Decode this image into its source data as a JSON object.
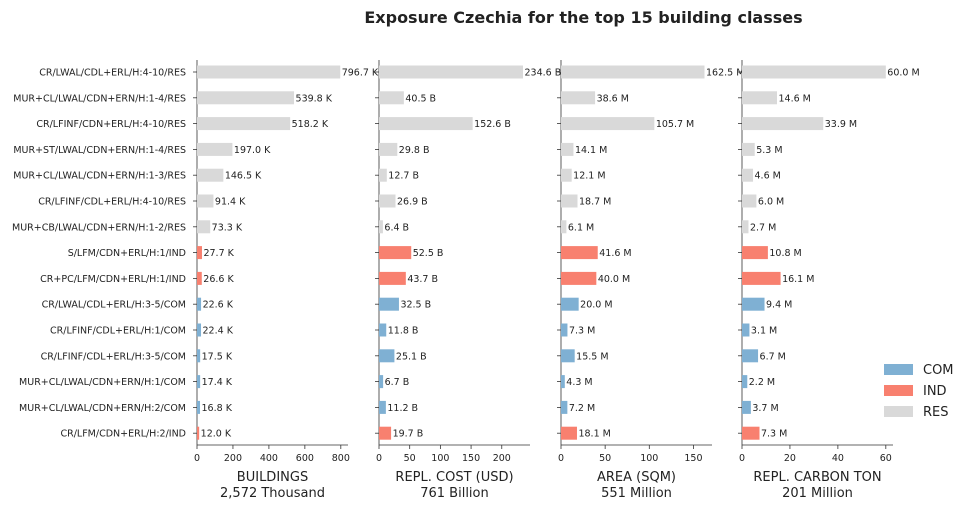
{
  "chart_data": {
    "type": "bar",
    "orientation": "horizontal",
    "title": "Exposure Czechia for the top 15 building classes",
    "categories": [
      "CR/LWAL/CDL+ERL/H:4-10/RES",
      "MUR+CL/LWAL/CDN+ERN/H:1-4/RES",
      "CR/LFINF/CDN+ERL/H:4-10/RES",
      "MUR+ST/LWAL/CDN+ERN/H:1-4/RES",
      "MUR+CL/LWAL/CDN+ERN/H:1-3/RES",
      "CR/LFINF/CDL+ERL/H:4-10/RES",
      "MUR+CB/LWAL/CDN+ERN/H:1-2/RES",
      "S/LFM/CDN+ERL/H:1/IND",
      "CR+PC/LFM/CDN+ERL/H:1/IND",
      "CR/LWAL/CDL+ERL/H:3-5/COM",
      "CR/LFINF/CDL+ERL/H:1/COM",
      "CR/LFINF/CDL+ERL/H:3-5/COM",
      "MUR+CL/LWAL/CDN+ERN/H:1/COM",
      "MUR+CL/LWAL/CDN+ERN/H:2/COM",
      "CR/LFM/CDN+ERL/H:2/IND"
    ],
    "occupancy": [
      "RES",
      "RES",
      "RES",
      "RES",
      "RES",
      "RES",
      "RES",
      "IND",
      "IND",
      "COM",
      "COM",
      "COM",
      "COM",
      "COM",
      "IND"
    ],
    "colors": {
      "COM": "#7fb0d3",
      "IND": "#f8806f",
      "RES": "#d9d9d9"
    },
    "legend": {
      "position": "right",
      "entries": [
        "COM",
        "IND",
        "RES"
      ]
    },
    "panels": [
      {
        "xlabel": "BUILDINGS",
        "total": "2,572 Thousand",
        "xlim": [
          0,
          840
        ],
        "ticks": [
          0,
          200,
          400,
          600,
          800
        ],
        "values": [
          796.7,
          539.8,
          518.2,
          197.0,
          146.5,
          91.4,
          73.3,
          27.7,
          26.6,
          22.6,
          22.4,
          17.5,
          17.4,
          16.8,
          12.0
        ],
        "labels": [
          "796.7 K",
          "539.8 K",
          "518.2 K",
          "197.0 K",
          "146.5 K",
          "91.4 K",
          "73.3 K",
          "27.7 K",
          "26.6 K",
          "22.6 K",
          "22.4 K",
          "17.5 K",
          "17.4 K",
          "16.8 K",
          "12.0 K"
        ]
      },
      {
        "xlabel": "REPL. COST (USD)",
        "total": "761 Billion",
        "xlim": [
          0,
          246
        ],
        "ticks": [
          0,
          50,
          100,
          150,
          200
        ],
        "values": [
          234.6,
          40.5,
          152.6,
          29.8,
          12.7,
          26.9,
          6.4,
          52.5,
          43.7,
          32.5,
          11.8,
          25.1,
          6.7,
          11.2,
          19.7
        ],
        "labels": [
          "234.6 B",
          "40.5 B",
          "152.6 B",
          "29.8 B",
          "12.7 B",
          "26.9 B",
          "6.4 B",
          "52.5 B",
          "43.7 B",
          "32.5 B",
          "11.8 B",
          "25.1 B",
          "6.7 B",
          "11.2 B",
          "19.7 B"
        ]
      },
      {
        "xlabel": "AREA (SQM)",
        "total": "551 Million",
        "xlim": [
          0,
          171
        ],
        "ticks": [
          0,
          50,
          100,
          150
        ],
        "values": [
          162.5,
          38.6,
          105.7,
          14.1,
          12.1,
          18.7,
          6.1,
          41.6,
          40.0,
          20.0,
          7.3,
          15.5,
          4.3,
          7.2,
          18.1
        ],
        "labels": [
          "162.5 M",
          "38.6 M",
          "105.7 M",
          "14.1 M",
          "12.1 M",
          "18.7 M",
          "6.1 M",
          "41.6 M",
          "40.0 M",
          "20.0 M",
          "7.3 M",
          "15.5 M",
          "4.3 M",
          "7.2 M",
          "18.1 M"
        ]
      },
      {
        "xlabel": "REPL. CARBON TON",
        "total": "201 Million",
        "xlim": [
          0,
          63
        ],
        "ticks": [
          0,
          20,
          40,
          60
        ],
        "values": [
          60.0,
          14.6,
          33.9,
          5.3,
          4.6,
          6.0,
          2.7,
          10.8,
          16.1,
          9.4,
          3.1,
          6.7,
          2.2,
          3.7,
          7.3
        ],
        "labels": [
          "60.0 M",
          "14.6 M",
          "33.9 M",
          "5.3 M",
          "4.6 M",
          "6.0 M",
          "2.7 M",
          "10.8 M",
          "16.1 M",
          "9.4 M",
          "3.1 M",
          "6.7 M",
          "2.2 M",
          "3.7 M",
          "7.3 M"
        ]
      }
    ]
  }
}
